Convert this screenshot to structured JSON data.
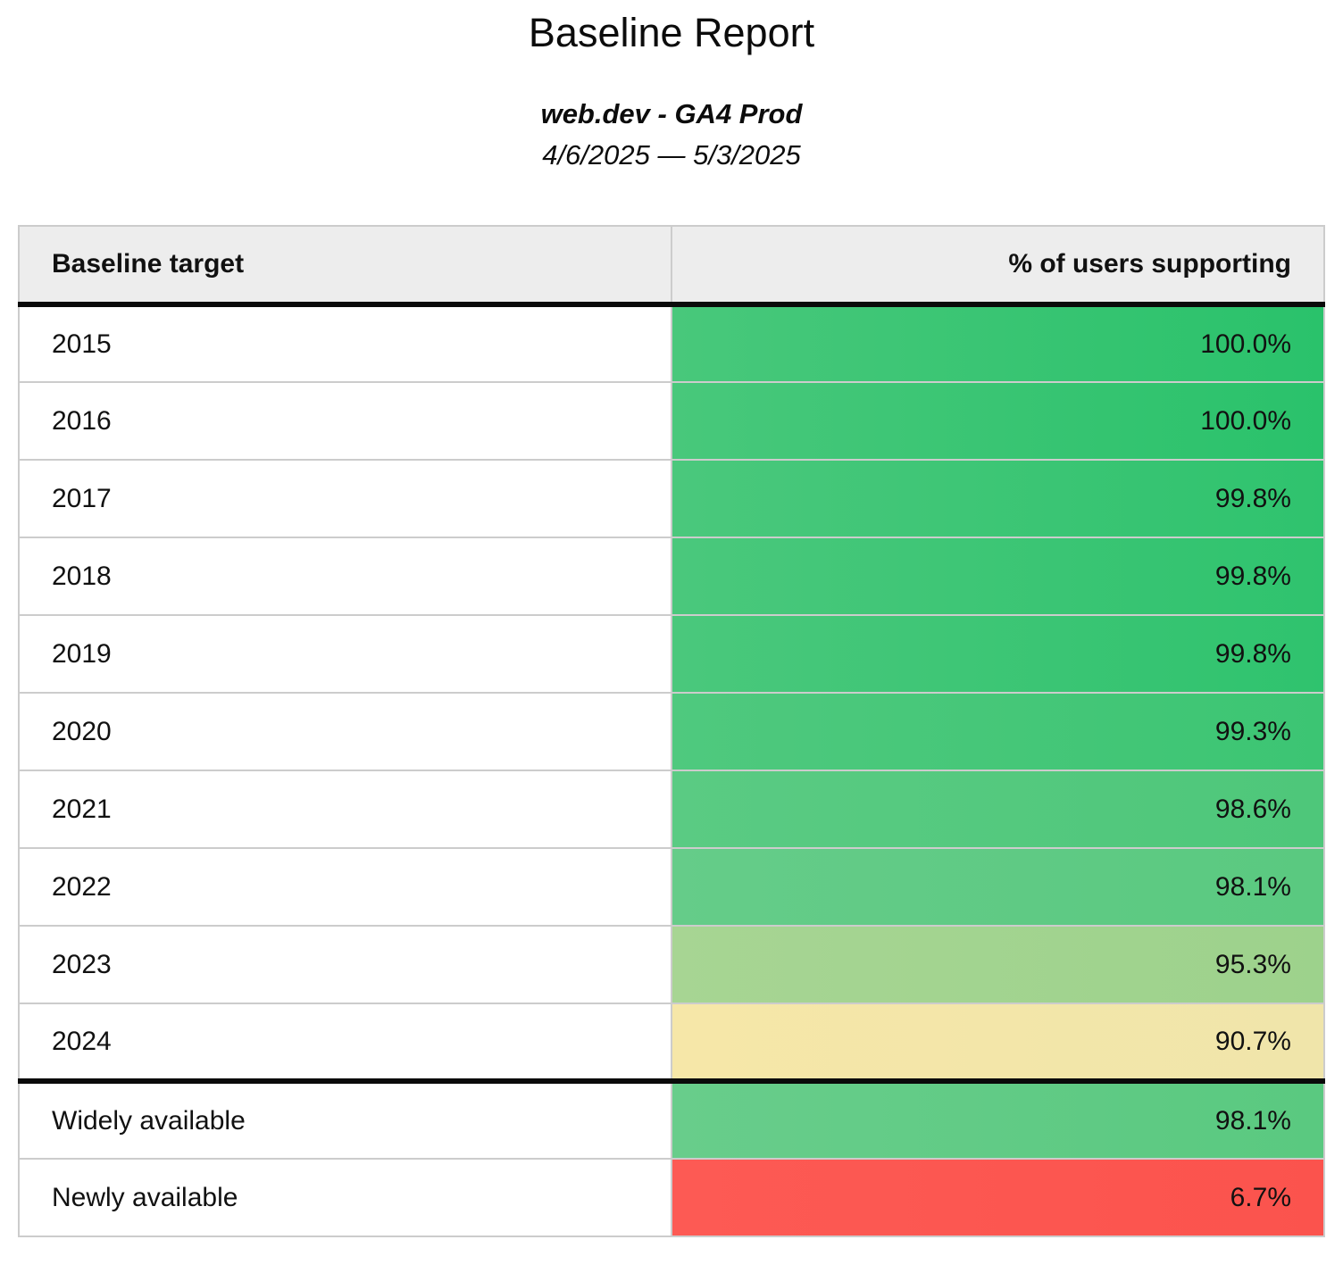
{
  "header": {
    "title": "Baseline Report",
    "source": "web.dev - GA4 Prod",
    "date_range": "4/6/2025 — 5/3/2025"
  },
  "table": {
    "columns": [
      "Baseline target",
      "% of users supporting"
    ],
    "rows": [
      {
        "label": "2015",
        "value": "100.0%",
        "color_left": "#48c87b",
        "color_right": "#2ac26b",
        "section_start": false
      },
      {
        "label": "2016",
        "value": "100.0%",
        "color_left": "#48c87b",
        "color_right": "#2ac26b",
        "section_start": false
      },
      {
        "label": "2017",
        "value": "99.8%",
        "color_left": "#4ac87c",
        "color_right": "#2fc36e",
        "section_start": false
      },
      {
        "label": "2018",
        "value": "99.8%",
        "color_left": "#4ac87c",
        "color_right": "#2fc36e",
        "section_start": false
      },
      {
        "label": "2019",
        "value": "99.8%",
        "color_left": "#4ac87c",
        "color_right": "#2fc36e",
        "section_start": false
      },
      {
        "label": "2020",
        "value": "99.3%",
        "color_left": "#4fc97e",
        "color_right": "#3cc573",
        "section_start": false
      },
      {
        "label": "2021",
        "value": "98.6%",
        "color_left": "#5acb83",
        "color_right": "#4ec77a",
        "section_start": false
      },
      {
        "label": "2022",
        "value": "98.1%",
        "color_left": "#65cc89",
        "color_right": "#5ac980",
        "section_start": false
      },
      {
        "label": "2023",
        "value": "95.3%",
        "color_left": "#a7d593",
        "color_right": "#9dd28c",
        "section_start": false
      },
      {
        "label": "2024",
        "value": "90.7%",
        "color_left": "#f6e7a8",
        "color_right": "#f0e5aa",
        "section_start": false
      },
      {
        "label": "Widely available",
        "value": "98.1%",
        "color_left": "#68cd8b",
        "color_right": "#5ac980",
        "section_start": true
      },
      {
        "label": "Newly available",
        "value": "6.7%",
        "color_left": "#fd5a54",
        "color_right": "#fb534d",
        "section_start": false
      }
    ]
  },
  "colors": {
    "header_bg": "#ededed",
    "thick_border": "#0a0a0a",
    "hairline_border": "#cccccc",
    "text": "#111111"
  },
  "chart_data": {
    "type": "table",
    "title": "Baseline Report",
    "subtitle": "web.dev - GA4 Prod",
    "date_range": "4/6/2025 — 5/3/2025",
    "columns": [
      "Baseline target",
      "% of users supporting"
    ],
    "categories": [
      "2015",
      "2016",
      "2017",
      "2018",
      "2019",
      "2020",
      "2021",
      "2022",
      "2023",
      "2024",
      "Widely available",
      "Newly available"
    ],
    "values": [
      100.0,
      100.0,
      99.8,
      99.8,
      99.8,
      99.3,
      98.6,
      98.1,
      95.3,
      90.7,
      98.1,
      6.7
    ],
    "value_unit": "%",
    "layout_hints": {
      "value_alignment": "right",
      "cell_color_scale": "green (high support) through yellow to red (low support)",
      "section_break_after_row": "2024"
    }
  }
}
